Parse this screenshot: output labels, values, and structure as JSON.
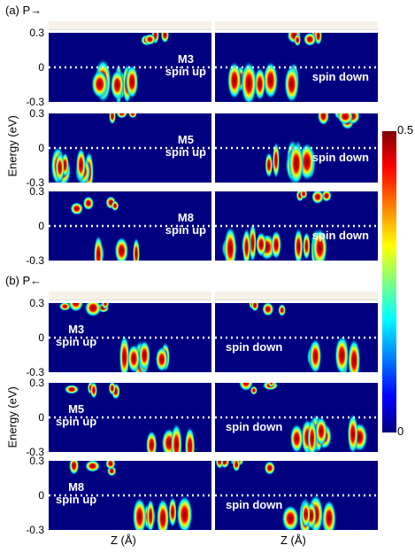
{
  "chart_data": {
    "type": "heatmap",
    "colorbar": {
      "min": 0,
      "max": 0.5,
      "min_label": "0",
      "max_label": "0.5",
      "colormap": "jet"
    },
    "ylabel": "Energy (eV)",
    "xlabel": "Z (Å)",
    "ylim": [
      -0.3,
      0.3
    ],
    "yticks": [
      "0.3",
      "0",
      "-0.3"
    ],
    "fermi_level_line": "dotted white at 0",
    "sections": [
      {
        "label": "(a) P→",
        "rows": [
          {
            "model": "M3",
            "up_label": "spin up",
            "down_label": "spin down"
          },
          {
            "model": "M5",
            "up_label": "spin up",
            "down_label": "spin down"
          },
          {
            "model": "M8",
            "up_label": "spin up",
            "down_label": "spin down"
          }
        ]
      },
      {
        "label": "(b) P←",
        "rows": [
          {
            "model": "M3",
            "up_label": "spin up",
            "down_label": "spin down"
          },
          {
            "model": "M5",
            "up_label": "spin up",
            "down_label": "spin down"
          },
          {
            "model": "M8",
            "up_label": "spin up",
            "down_label": "spin down"
          }
        ]
      }
    ]
  },
  "colors": {
    "background": "#000080",
    "high": "#800000"
  }
}
